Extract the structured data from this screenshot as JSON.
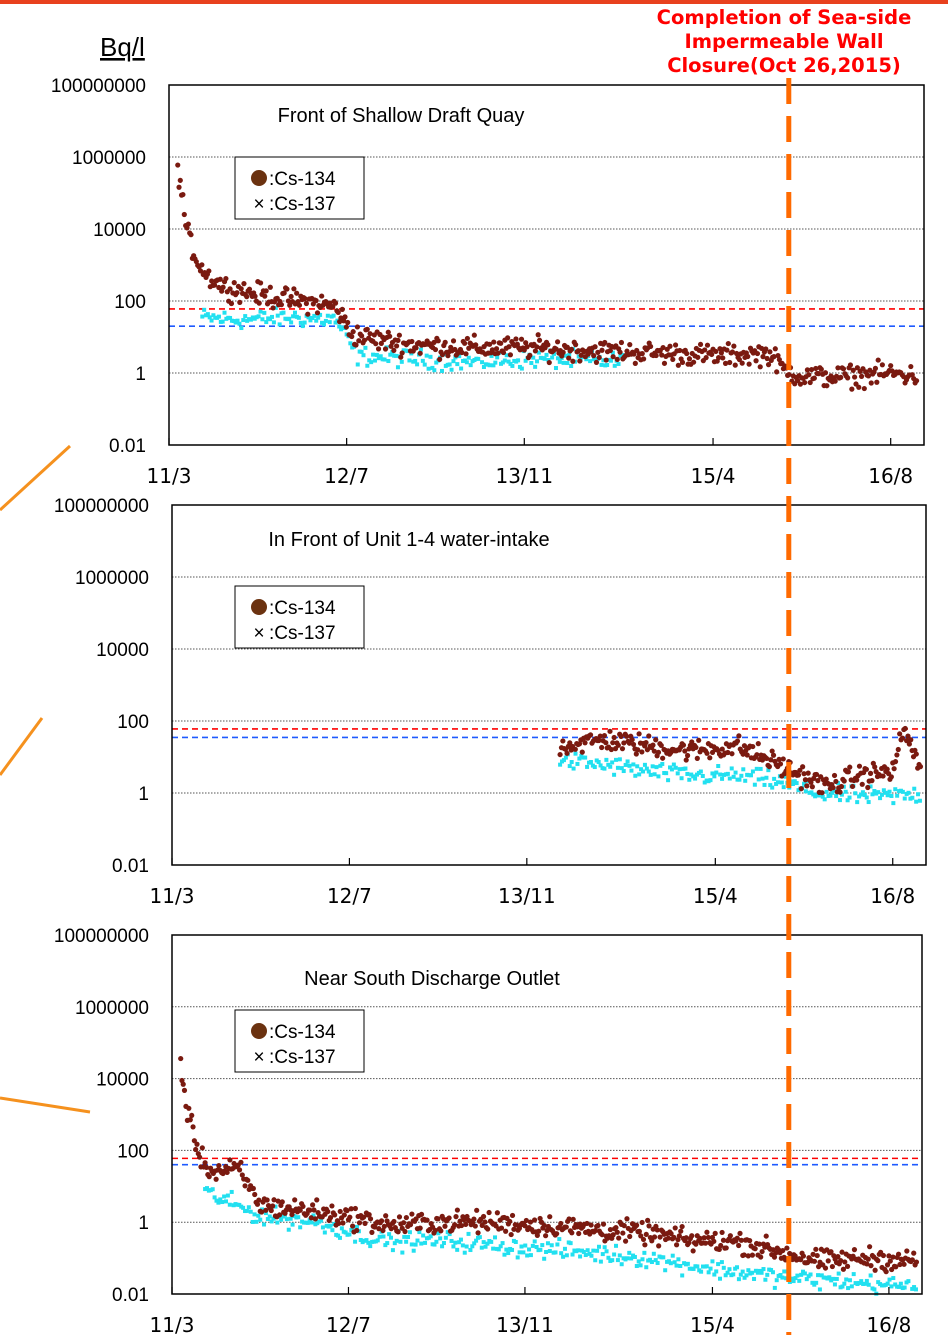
{
  "unit_label": "Bq/l",
  "annotation": {
    "lines": [
      "Completion of Sea-side",
      "Impermeable Wall",
      "Closure(Oct 26,2015)"
    ],
    "date": "2015-10-26",
    "color": "#ff6a00",
    "text_color": "#ff0000"
  },
  "colors": {
    "cs134": "#7a1a10",
    "cs137": "#22e0f0",
    "limit_cs134": "#ff0000",
    "limit_cs137": "#1e5aff",
    "grid": "#555555",
    "connector": "#f5911e"
  },
  "chart_data": [
    {
      "type": "scatter",
      "title": "Front of Shallow Draft Quay",
      "ylabel": "Bq/l",
      "y_scale": "log",
      "ylim": [
        0.01,
        100000000
      ],
      "y_ticks": [
        "100000000",
        "1000000",
        "10000",
        "100",
        "1",
        "0.01"
      ],
      "x_ticks": [
        "11/3",
        "12/7",
        "13/11",
        "15/4",
        "16/8"
      ],
      "xlim": [
        "2011-03",
        "2016-11"
      ],
      "legend": [
        "●:Cs-134",
        "×:Cs-137"
      ],
      "limits": {
        "cs134": 60,
        "cs137": 20
      },
      "series": [
        {
          "name": "Cs-134",
          "marker": "circle",
          "values": [
            [
              "2011-03-25",
              600000
            ],
            [
              "2011-04-05",
              100000
            ],
            [
              "2011-04-20",
              8000
            ],
            [
              "2011-05-15",
              1500
            ],
            [
              "2011-06-15",
              500
            ],
            [
              "2011-08-01",
              250
            ],
            [
              "2011-10-01",
              180
            ],
            [
              "2012-01-01",
              120
            ],
            [
              "2012-04-01",
              90
            ],
            [
              "2012-06-01",
              70
            ],
            [
              "2012-07-15",
              12
            ],
            [
              "2012-10-01",
              8
            ],
            [
              "2013-01-01",
              6
            ],
            [
              "2013-06-01",
              5
            ],
            [
              "2013-12-01",
              5
            ],
            [
              "2014-06-01",
              4
            ],
            [
              "2014-12-01",
              3.5
            ],
            [
              "2015-05-01",
              3
            ],
            [
              "2015-09-01",
              3.5
            ],
            [
              "2015-10-15",
              1.2
            ],
            [
              "2015-12-01",
              0.8
            ],
            [
              "2016-04-01",
              0.8
            ],
            [
              "2016-08-01",
              1.0
            ],
            [
              "2016-10-15",
              0.8
            ]
          ]
        },
        {
          "name": "Cs-137",
          "marker": "x",
          "values": [
            [
              "2011-06-01",
              35
            ],
            [
              "2011-09-01",
              30
            ],
            [
              "2012-02-01",
              35
            ],
            [
              "2012-06-01",
              30
            ],
            [
              "2012-08-01",
              3
            ],
            [
              "2013-01-01",
              2.5
            ],
            [
              "2013-06-01",
              2
            ],
            [
              "2014-01-01",
              2.5
            ],
            [
              "2014-08-01",
              2
            ]
          ]
        }
      ]
    },
    {
      "type": "scatter",
      "title": "In Front of Unit 1-4 water-intake",
      "ylabel": "Bq/l",
      "y_scale": "log",
      "ylim": [
        0.01,
        100000000
      ],
      "y_ticks": [
        "100000000",
        "1000000",
        "10000",
        "100",
        "1",
        "0.01"
      ],
      "x_ticks": [
        "11/3",
        "12/7",
        "13/11",
        "15/4",
        "16/8"
      ],
      "xlim": [
        "2011-03",
        "2016-11"
      ],
      "legend": [
        "●:Cs-134",
        "×:Cs-137"
      ],
      "limits": {
        "cs134": 60,
        "cs137": 35
      },
      "series": [
        {
          "name": "Cs-134",
          "marker": "circle",
          "values": [
            [
              "2014-02-01",
              20
            ],
            [
              "2014-06-01",
              30
            ],
            [
              "2014-10-01",
              20
            ],
            [
              "2015-02-01",
              15
            ],
            [
              "2015-06-01",
              20
            ],
            [
              "2015-09-01",
              8
            ],
            [
              "2015-11-01",
              4
            ],
            [
              "2016-02-01",
              1.5
            ],
            [
              "2016-05-01",
              3
            ],
            [
              "2016-08-01",
              4
            ],
            [
              "2016-09-01",
              60
            ],
            [
              "2016-10-20",
              4
            ]
          ]
        },
        {
          "name": "Cs-137",
          "marker": "x",
          "values": [
            [
              "2014-02-01",
              8
            ],
            [
              "2014-06-01",
              6
            ],
            [
              "2014-10-01",
              4
            ],
            [
              "2015-02-01",
              3
            ],
            [
              "2015-06-01",
              3
            ],
            [
              "2015-10-01",
              2
            ],
            [
              "2016-01-01",
              1
            ],
            [
              "2016-06-01",
              0.8
            ],
            [
              "2016-10-20",
              0.9
            ]
          ]
        }
      ]
    },
    {
      "type": "scatter",
      "title": "Near South Discharge Outlet",
      "ylabel": "Bq/l",
      "y_scale": "log",
      "ylim": [
        0.01,
        100000000
      ],
      "y_ticks": [
        "100000000",
        "1000000",
        "10000",
        "100",
        "1",
        "0.01"
      ],
      "x_ticks": [
        "11/3",
        "12/7",
        "13/11",
        "15/4",
        "16/8"
      ],
      "xlim": [
        "2011-03",
        "2016-11"
      ],
      "legend": [
        "●:Cs-134",
        "×:Cs-137"
      ],
      "limits": {
        "cs134": 60,
        "cs137": 40
      },
      "series": [
        {
          "name": "Cs-134",
          "marker": "circle",
          "values": [
            [
              "2011-03-25",
              30000
            ],
            [
              "2011-04-05",
              3000
            ],
            [
              "2011-04-25",
              400
            ],
            [
              "2011-05-20",
              60
            ],
            [
              "2011-06-20",
              25
            ],
            [
              "2011-09-01",
              30
            ],
            [
              "2011-11-01",
              3
            ],
            [
              "2012-01-01",
              2.5
            ],
            [
              "2012-04-01",
              2
            ],
            [
              "2012-08-01",
              1.2
            ],
            [
              "2012-11-01",
              0.8
            ],
            [
              "2013-03-01",
              1
            ],
            [
              "2013-08-01",
              1
            ],
            [
              "2014-01-01",
              0.8
            ],
            [
              "2014-06-01",
              0.6
            ],
            [
              "2014-10-01",
              0.5
            ],
            [
              "2015-02-01",
              0.3
            ],
            [
              "2015-06-01",
              0.3
            ],
            [
              "2015-10-01",
              0.15
            ],
            [
              "2016-02-01",
              0.08
            ],
            [
              "2016-06-01",
              0.1
            ],
            [
              "2016-10-20",
              0.08
            ]
          ]
        },
        {
          "name": "Cs-137",
          "marker": "x",
          "values": [
            [
              "2011-06-01",
              7
            ],
            [
              "2011-11-01",
              1.5
            ],
            [
              "2012-04-01",
              1
            ],
            [
              "2012-10-01",
              0.3
            ],
            [
              "2013-04-01",
              0.3
            ],
            [
              "2013-10-01",
              0.2
            ],
            [
              "2014-04-01",
              0.15
            ],
            [
              "2014-10-01",
              0.1
            ],
            [
              "2015-04-01",
              0.05
            ],
            [
              "2015-10-01",
              0.03
            ],
            [
              "2016-06-01",
              0.02
            ],
            [
              "2016-10-20",
              0.015
            ]
          ]
        }
      ]
    }
  ]
}
